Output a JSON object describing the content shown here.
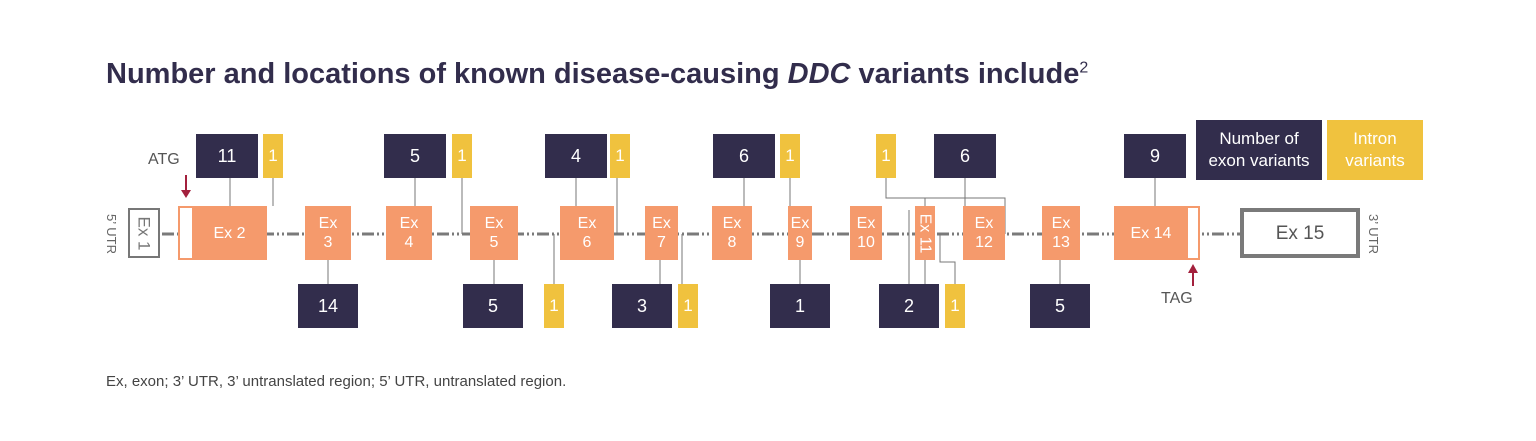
{
  "title": {
    "before": "Number and locations of known disease-causing ",
    "italic": "DDC",
    "after": " variants include",
    "superscript": "2"
  },
  "labels": {
    "utr5": "5’ UTR",
    "utr3": "3’ UTR",
    "start": "ATG",
    "stop": "TAG"
  },
  "legend": {
    "exon": "Number of exon variants",
    "intron": "Intron variants"
  },
  "exons": [
    "Ex 1",
    "Ex 2",
    "Ex 3",
    "Ex 4",
    "Ex 5",
    "Ex 6",
    "Ex 7",
    "Ex 8",
    "Ex 9",
    "Ex 10",
    "Ex 11",
    "Ex 12",
    "Ex 13",
    "Ex 14",
    "Ex 15"
  ],
  "exon_variants_above": [
    11,
    5,
    4,
    6,
    6,
    9
  ],
  "exon_variants_below": [
    14,
    5,
    3,
    1,
    2,
    5
  ],
  "intron_variants_above": [
    1,
    1,
    1,
    1,
    1
  ],
  "intron_variants_below": [
    1,
    1,
    1
  ],
  "footnote": "Ex, exon; 3’ UTR, 3’ untranslated region; 5’ UTR, untranslated region."
}
